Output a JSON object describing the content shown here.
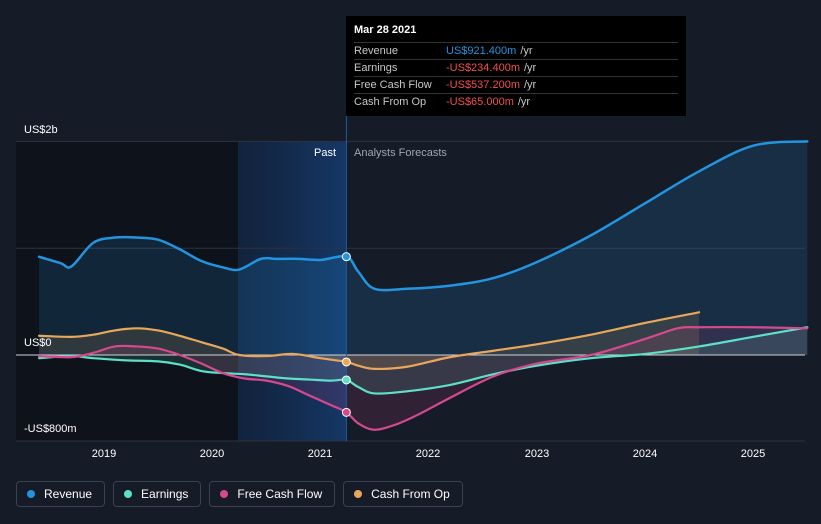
{
  "tooltip": {
    "date": "Mar 28 2021",
    "rows": [
      {
        "label": "Revenue",
        "value": "US$921.400m",
        "unit": "/yr",
        "color": "#2394df"
      },
      {
        "label": "Earnings",
        "value": "-US$234.400m",
        "unit": "/yr",
        "color": "#f24d4d"
      },
      {
        "label": "Free Cash Flow",
        "value": "-US$537.200m",
        "unit": "/yr",
        "color": "#f24d4d"
      },
      {
        "label": "Cash From Op",
        "value": "-US$65.000m",
        "unit": "/yr",
        "color": "#f24d4d"
      }
    ]
  },
  "regions": {
    "past": "Past",
    "forecast": "Analysts Forecasts"
  },
  "legend": [
    {
      "label": "Revenue",
      "color": "#2394df"
    },
    {
      "label": "Earnings",
      "color": "#5ce0c8"
    },
    {
      "label": "Free Cash Flow",
      "color": "#d6498f"
    },
    {
      "label": "Cash From Op",
      "color": "#e8a75b"
    }
  ],
  "chart_data": {
    "type": "line",
    "ylim": [
      -800,
      2000
    ],
    "y_ticks": [
      {
        "label": "US$2b",
        "value": 2000
      },
      {
        "label": "US$0",
        "value": 0
      },
      {
        "label": "-US$800m",
        "value": -800
      }
    ],
    "x_ticks": [
      "2019",
      "2020",
      "2021",
      "2022",
      "2023",
      "2024",
      "2025"
    ],
    "highlight_date": 2021.24,
    "series": [
      {
        "name": "Revenue",
        "color": "#2394df",
        "x": [
          2018.4,
          2018.6,
          2018.7,
          2018.9,
          2019.1,
          2019.3,
          2019.5,
          2019.7,
          2019.9,
          2020.1,
          2020.25,
          2020.45,
          2020.6,
          2020.8,
          2021.0,
          2021.24,
          2021.35,
          2021.5,
          2021.8,
          2022.2,
          2022.6,
          2023.0,
          2023.5,
          2024.0,
          2024.5,
          2025.0,
          2025.5
        ],
        "y": [
          920,
          860,
          830,
          1050,
          1100,
          1100,
          1080,
          990,
          880,
          820,
          800,
          900,
          900,
          900,
          890,
          921,
          780,
          620,
          620,
          650,
          720,
          870,
          1120,
          1420,
          1720,
          1960,
          2000
        ]
      },
      {
        "name": "Earnings",
        "color": "#5ce0c8",
        "x": [
          2018.4,
          2018.7,
          2018.9,
          2019.2,
          2019.5,
          2019.7,
          2019.9,
          2020.1,
          2020.3,
          2020.5,
          2020.7,
          2020.9,
          2021.1,
          2021.24,
          2021.35,
          2021.5,
          2021.8,
          2022.2,
          2022.6,
          2023.0,
          2023.5,
          2024.0,
          2024.5,
          2025.0,
          2025.5
        ],
        "y": [
          -30,
          -10,
          -30,
          -50,
          -60,
          -90,
          -150,
          -170,
          -180,
          -200,
          -220,
          -230,
          -240,
          -234,
          -300,
          -360,
          -340,
          -280,
          -180,
          -100,
          -30,
          10,
          80,
          170,
          260
        ]
      },
      {
        "name": "Free Cash Flow",
        "color": "#d6498f",
        "x": [
          2018.4,
          2018.7,
          2018.9,
          2019.1,
          2019.3,
          2019.5,
          2019.7,
          2019.9,
          2020.1,
          2020.3,
          2020.5,
          2020.7,
          2020.9,
          2021.1,
          2021.24,
          2021.35,
          2021.5,
          2021.7,
          2021.9,
          2022.2,
          2022.6,
          2023.0,
          2023.5,
          2024.0,
          2024.3,
          2024.5,
          2025.0,
          2025.5
        ],
        "y": [
          -10,
          -20,
          20,
          80,
          80,
          60,
          0,
          -80,
          -170,
          -220,
          -240,
          -290,
          -380,
          -470,
          -537,
          -640,
          -700,
          -650,
          -560,
          -400,
          -200,
          -80,
          0,
          150,
          250,
          260,
          260,
          250
        ]
      },
      {
        "name": "Cash From Op",
        "color": "#e8a75b",
        "x": [
          2018.4,
          2018.7,
          2018.9,
          2019.1,
          2019.3,
          2019.5,
          2019.7,
          2019.9,
          2020.1,
          2020.25,
          2020.5,
          2020.75,
          2021.0,
          2021.24,
          2021.35,
          2021.5,
          2021.8,
          2022.2,
          2022.6,
          2023.0,
          2023.5,
          2024.0,
          2024.5
        ],
        "y": [
          180,
          170,
          190,
          230,
          250,
          230,
          180,
          120,
          60,
          0,
          -10,
          10,
          -30,
          -65,
          -100,
          -130,
          -110,
          -20,
          40,
          100,
          190,
          300,
          400
        ]
      }
    ]
  }
}
